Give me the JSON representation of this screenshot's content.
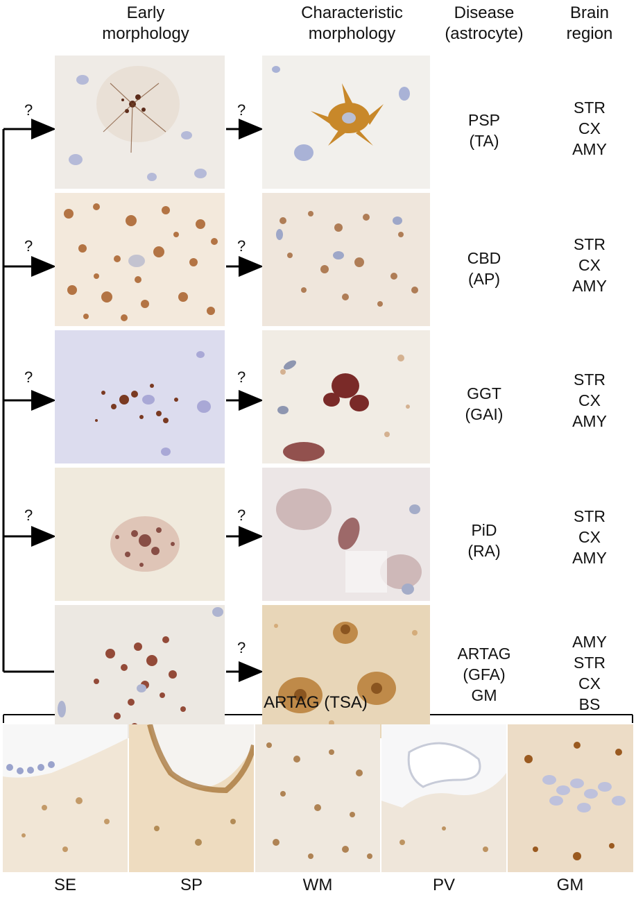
{
  "headers": {
    "early": [
      "Early",
      "morphology"
    ],
    "characteristic": [
      "Characteristic",
      "morphology"
    ],
    "disease": [
      "Disease",
      "(astrocyte)"
    ],
    "region": [
      "Brain",
      "region"
    ]
  },
  "question_mark": "?",
  "rows": [
    {
      "disease": [
        "PSP",
        "(TA)"
      ],
      "regions": [
        "STR",
        "CX",
        "AMY"
      ],
      "early_q": true
    },
    {
      "disease": [
        "CBD",
        "(AP)"
      ],
      "regions": [
        "STR",
        "CX",
        "AMY"
      ],
      "early_q": true
    },
    {
      "disease": [
        "GGT",
        "(GAI)"
      ],
      "regions": [
        "STR",
        "CX",
        "AMY"
      ],
      "early_q": true
    },
    {
      "disease": [
        "PiD",
        "(RA)"
      ],
      "regions": [
        "STR",
        "CX",
        "AMY"
      ],
      "early_q": true
    },
    {
      "disease": [
        "ARTAG",
        "(GFA)",
        "GM"
      ],
      "regions": [
        "AMY",
        "STR",
        "CX",
        "BS"
      ],
      "early_q": false
    }
  ],
  "artag_tsa": {
    "title": "ARTAG (TSA)",
    "panels": [
      "SE",
      "SP",
      "WM",
      "PV",
      "GM"
    ]
  },
  "colors": {
    "brown_stain": "#8a4a1a",
    "red_brown_stain": "#7a2a28",
    "nuclei": "#9ba7d0",
    "background_tissue": "#f1ece4"
  }
}
